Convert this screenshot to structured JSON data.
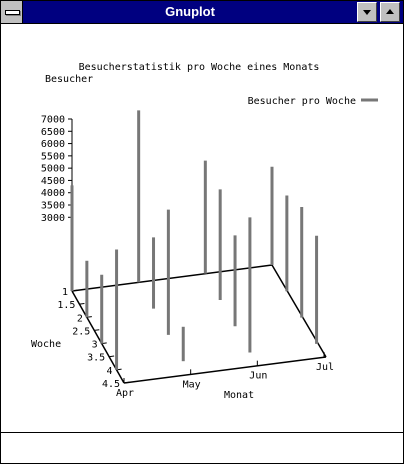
{
  "window": {
    "title": "Gnuplot"
  },
  "chart_data": {
    "type": "3d-impulse",
    "title": "Besucherstatistik pro Woche eines Monats",
    "zlabel": "Besucher",
    "xlabel": "Monat",
    "ylabel": "Woche",
    "legend": {
      "label": "Besucher pro Woche",
      "position": "top-right"
    },
    "x_ticks": [
      "Apr",
      "May",
      "Jun",
      "Jul"
    ],
    "y_ticks": [
      "1",
      "1.5",
      "2",
      "2.5",
      "3",
      "3.5",
      "4",
      "4.5"
    ],
    "z_ticks": [
      "3000",
      "3500",
      "4000",
      "4500",
      "5000",
      "5500",
      "6000",
      "6500",
      "7000"
    ],
    "zlim": [
      0,
      7000
    ],
    "points": [
      {
        "month": "Apr",
        "week": 1,
        "visitors": 4300
      },
      {
        "month": "Apr",
        "week": 2,
        "visitors": 2300
      },
      {
        "month": "Apr",
        "week": 3,
        "visitors": 2800
      },
      {
        "month": "Apr",
        "week": 4,
        "visitors": 4900
      },
      {
        "month": "May",
        "week": 1,
        "visitors": 7000
      },
      {
        "month": "May",
        "week": 2,
        "visitors": 2900
      },
      {
        "month": "May",
        "week": 3,
        "visitors": 5100
      },
      {
        "month": "May",
        "week": 4,
        "visitors": 1400
      },
      {
        "month": "Jun",
        "week": 1,
        "visitors": 4600
      },
      {
        "month": "Jun",
        "week": 2,
        "visitors": 4500
      },
      {
        "month": "Jun",
        "week": 3,
        "visitors": 3700
      },
      {
        "month": "Jun",
        "week": 4,
        "visitors": 5500
      },
      {
        "month": "Jul",
        "week": 1,
        "visitors": 4000
      },
      {
        "month": "Jul",
        "week": 2,
        "visitors": 3900
      },
      {
        "month": "Jul",
        "week": 3,
        "visitors": 4500
      },
      {
        "month": "Jul",
        "week": 4,
        "visitors": 4400
      }
    ]
  }
}
